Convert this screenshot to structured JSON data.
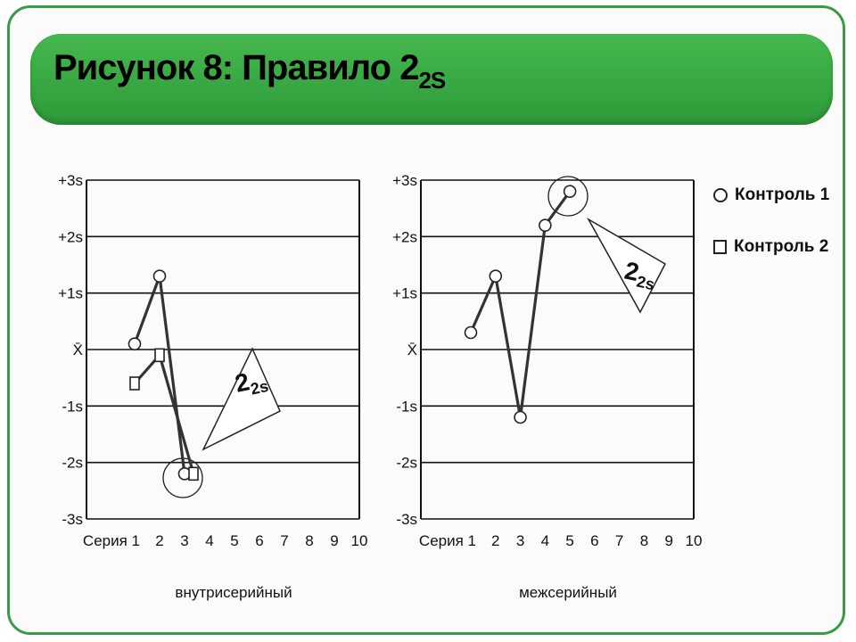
{
  "title": {
    "text": "Рисунок 8: Правило 2",
    "subscript": "2S"
  },
  "legend": {
    "items": [
      {
        "label": "Контроль 1",
        "symbol": "circle"
      },
      {
        "label": "Контроль 2",
        "symbol": "square"
      }
    ]
  },
  "colors": {
    "banner": "#3aab45",
    "frame": "#3a9a46",
    "grid": "#111111",
    "series": "#333333"
  },
  "chart_data": [
    {
      "type": "line",
      "xlabel": "внутрисерийный",
      "x_tick_labels": [
        "Серия 1",
        "2",
        "3",
        "4",
        "5",
        "6",
        "7",
        "8",
        "9",
        "10"
      ],
      "y_tick_labels": [
        "+3s",
        "+2s",
        "+1s",
        "X̄",
        "-1s",
        "-2s",
        "-3s"
      ],
      "ylim": [
        -3,
        3
      ],
      "xlim": [
        1,
        10
      ],
      "grid": true,
      "series": [
        {
          "name": "Контроль 1",
          "marker": "circle",
          "x": [
            1,
            2,
            3
          ],
          "values": [
            0.1,
            1.3,
            -2.2
          ]
        },
        {
          "name": "Контроль 2",
          "marker": "square",
          "x": [
            1,
            2,
            3
          ],
          "values": [
            -0.6,
            -0.1,
            -2.2
          ]
        }
      ],
      "annotation": {
        "text": "2",
        "subscript": "2s"
      }
    },
    {
      "type": "line",
      "xlabel": "межсерийный",
      "x_tick_labels": [
        "Серия 1",
        "2",
        "3",
        "4",
        "5",
        "6",
        "7",
        "8",
        "9",
        "10"
      ],
      "y_tick_labels": [
        "+3s",
        "+2s",
        "+1s",
        "X̄",
        "-1s",
        "-2s",
        "-3s"
      ],
      "ylim": [
        -3,
        3
      ],
      "xlim": [
        1,
        10
      ],
      "grid": true,
      "series": [
        {
          "name": "Контроль 1",
          "marker": "circle",
          "x": [
            1,
            2,
            3,
            4,
            5
          ],
          "values": [
            0.3,
            1.3,
            -1.2,
            2.2,
            2.8
          ]
        }
      ],
      "annotation": {
        "text": "2",
        "subscript": "2s"
      }
    }
  ]
}
